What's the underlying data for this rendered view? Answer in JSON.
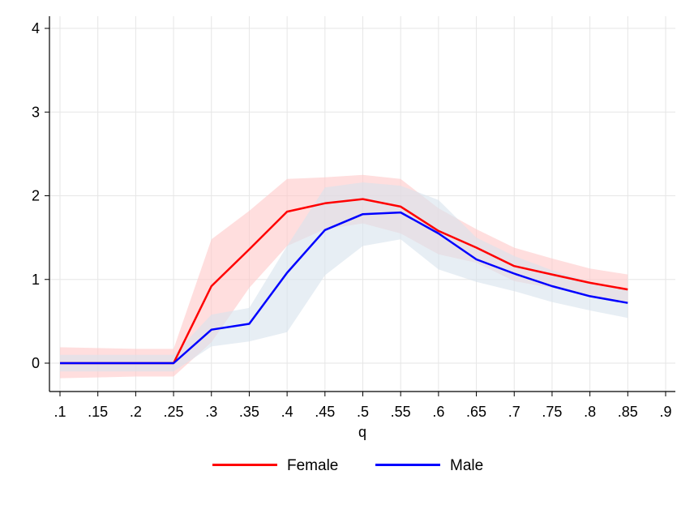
{
  "chart_data": {
    "type": "line",
    "xlabel": "q",
    "ylabel": "",
    "xlim": [
      0.1,
      0.9
    ],
    "ylim": [
      -0.35,
      4.15
    ],
    "xticks": [
      0.1,
      0.15,
      0.2,
      0.25,
      0.3,
      0.35,
      0.4,
      0.45,
      0.5,
      0.55,
      0.6,
      0.65,
      0.7,
      0.75,
      0.8,
      0.85,
      0.9
    ],
    "xtick_labels": [
      ".1",
      ".15",
      ".2",
      ".25",
      ".3",
      ".35",
      ".4",
      ".45",
      ".5",
      ".55",
      ".6",
      ".65",
      ".7",
      ".75",
      ".8",
      ".85",
      ".9"
    ],
    "yticks": [
      0,
      1,
      2,
      3,
      4
    ],
    "ytick_labels": [
      "0",
      "1",
      "2",
      "3",
      "4"
    ],
    "grid": true,
    "legend_position": "bottom",
    "x": [
      0.1,
      0.15,
      0.2,
      0.25,
      0.3,
      0.35,
      0.4,
      0.45,
      0.5,
      0.55,
      0.6,
      0.65,
      0.7,
      0.75,
      0.8,
      0.85
    ],
    "series": [
      {
        "name": "Female",
        "color": "#ff0000",
        "band_color": "#ffc8c8",
        "values": [
          0,
          0,
          0,
          0,
          0.92,
          1.36,
          1.81,
          1.91,
          1.96,
          1.87,
          1.58,
          1.38,
          1.16,
          1.06,
          0.96,
          0.88
        ],
        "lower": [
          -0.18,
          -0.17,
          -0.16,
          -0.16,
          0.25,
          0.9,
          1.4,
          1.6,
          1.67,
          1.55,
          1.3,
          1.2,
          0.98,
          0.9,
          0.8,
          0.72
        ],
        "upper": [
          0.19,
          0.18,
          0.17,
          0.17,
          1.48,
          1.82,
          2.2,
          2.22,
          2.25,
          2.2,
          1.85,
          1.6,
          1.38,
          1.25,
          1.13,
          1.06
        ]
      },
      {
        "name": "Male",
        "color": "#0000ff",
        "band_color": "#d7e3ec",
        "values": [
          0,
          0,
          0,
          0,
          0.4,
          0.47,
          1.08,
          1.59,
          1.78,
          1.8,
          1.55,
          1.24,
          1.07,
          0.92,
          0.8,
          0.72
        ],
        "lower": [
          -0.1,
          -0.1,
          -0.1,
          -0.1,
          0.2,
          0.26,
          0.37,
          1.05,
          1.4,
          1.48,
          1.12,
          0.97,
          0.86,
          0.73,
          0.63,
          0.54
        ],
        "upper": [
          0.1,
          0.1,
          0.1,
          0.1,
          0.58,
          0.66,
          1.4,
          2.1,
          2.16,
          2.12,
          1.95,
          1.5,
          1.28,
          1.11,
          0.97,
          0.89
        ]
      }
    ]
  }
}
